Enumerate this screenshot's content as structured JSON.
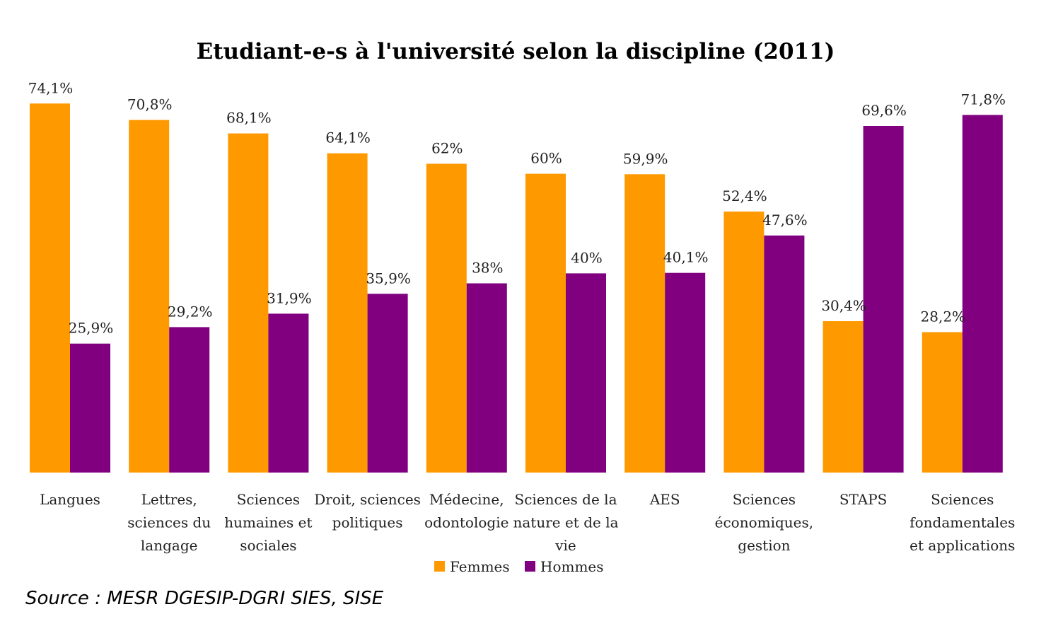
{
  "chart_data": {
    "type": "bar",
    "title": "Etudiant-e-s à l'université selon la discipline (2011)",
    "categories": [
      [
        "Langues"
      ],
      [
        "Lettres,",
        "sciences du",
        "langage"
      ],
      [
        "Sciences",
        "humaines et",
        "sociales"
      ],
      [
        "Droit, sciences",
        "politiques"
      ],
      [
        "Médecine,",
        "odontologie"
      ],
      [
        "Sciences de la",
        "nature et de la",
        "vie"
      ],
      [
        "AES"
      ],
      [
        "Sciences",
        "économiques,",
        "gestion"
      ],
      [
        "STAPS"
      ],
      [
        "Sciences",
        "fondamentales",
        "et applications"
      ]
    ],
    "series": [
      {
        "name": "Femmes",
        "color": "#FF9900",
        "values": [
          74.1,
          70.8,
          68.1,
          64.1,
          62,
          60,
          59.9,
          52.4,
          30.4,
          28.2
        ],
        "labels": [
          "74,1%",
          "70,8%",
          "68,1%",
          "64,1%",
          "62%",
          "60%",
          "59,9%",
          "52,4%",
          "30,4%",
          "28,2%"
        ]
      },
      {
        "name": "Hommes",
        "color": "#800080",
        "values": [
          25.9,
          29.2,
          31.9,
          35.9,
          38,
          40,
          40.1,
          47.6,
          69.6,
          71.8
        ],
        "labels": [
          "25,9%",
          "29,2%",
          "31,9%",
          "35,9%",
          "38%",
          "40%",
          "40,1%",
          "47,6%",
          "69,6%",
          "71,8%"
        ]
      }
    ],
    "ylim": [
      0,
      100
    ],
    "grid": false,
    "legend": "bottom"
  },
  "source": "Source : MESR DGESIP-DGRI SIES, SISE"
}
